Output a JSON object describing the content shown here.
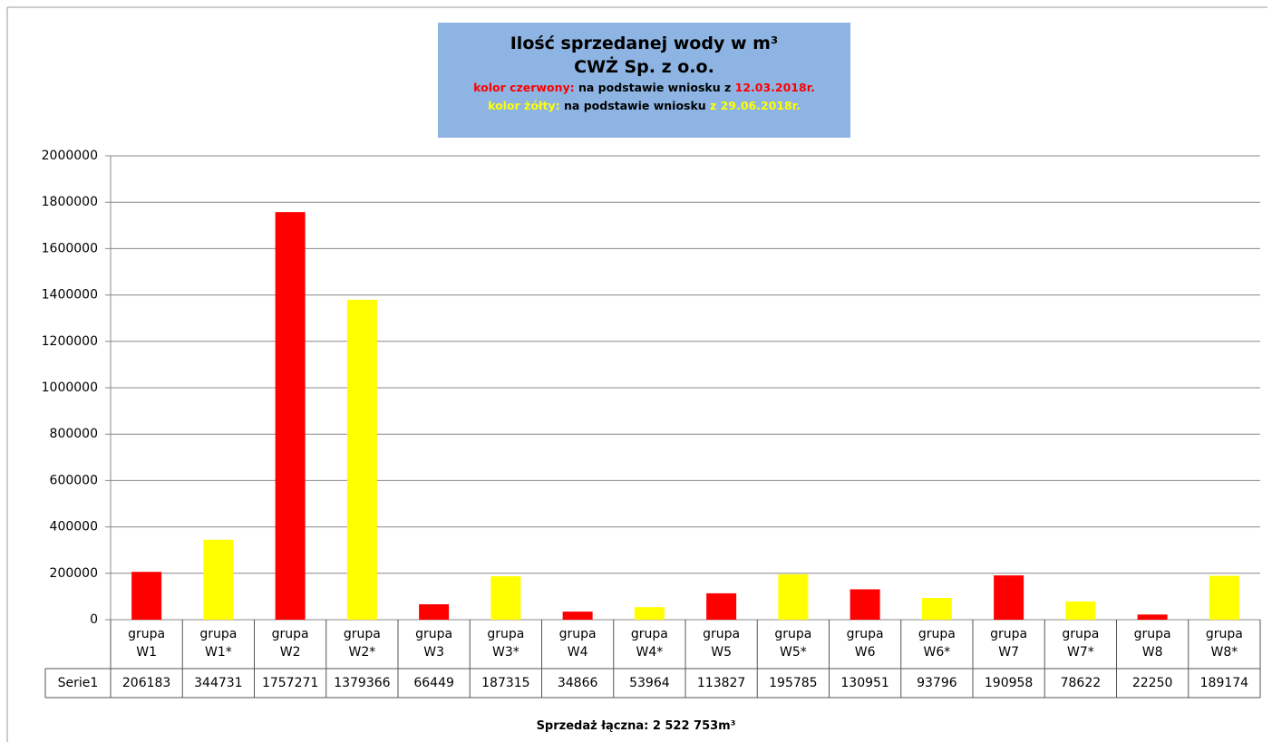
{
  "chart_data": {
    "type": "bar",
    "title": "Ilość sprzedanej wody w m³",
    "subtitle": "CWŻ Sp. z o.o.",
    "annotations": [
      [
        {
          "text": "kolor czerwony:",
          "color": "#ff0000"
        },
        {
          "text": "na podstawie wniosku z",
          "color": "#000000"
        },
        {
          "text": "12.03.2018r.",
          "color": "#ff0000"
        }
      ],
      [
        {
          "text": "kolor żółty:",
          "color": "#ffff00"
        },
        {
          "text": "na podstawie wniosku",
          "color": "#000000"
        },
        {
          "text": "z 29.06.2018r.",
          "color": "#ffff00"
        }
      ]
    ],
    "categories": [
      "grupa W1",
      "grupa W1*",
      "grupa W2",
      "grupa W2*",
      "grupa W3",
      "grupa W3*",
      "grupa W4",
      "grupa W4*",
      "grupa W5",
      "grupa W5*",
      "grupa W6",
      "grupa W6*",
      "grupa W7",
      "grupa W7*",
      "grupa W8",
      "grupa W8*"
    ],
    "series": [
      {
        "name": "Serie1",
        "values": [
          206183,
          344731,
          1757271,
          1379366,
          66449,
          187315,
          34866,
          53964,
          113827,
          195785,
          130951,
          93796,
          190958,
          78622,
          22250,
          189174
        ],
        "colors": [
          "#ff0000",
          "#ffff00",
          "#ff0000",
          "#ffff00",
          "#ff0000",
          "#ffff00",
          "#ff0000",
          "#ffff00",
          "#ff0000",
          "#ffff00",
          "#ff0000",
          "#ffff00",
          "#ff0000",
          "#ffff00",
          "#ff0000",
          "#ffff00"
        ]
      }
    ],
    "ylim": [
      0,
      2000000
    ],
    "yticks": [
      0,
      200000,
      400000,
      600000,
      800000,
      1000000,
      1200000,
      1400000,
      1600000,
      1800000,
      2000000
    ],
    "grid": true,
    "footer": "Sprzedaż łączna:  2 522 753m³",
    "title_box_color": "#8db4e2"
  }
}
